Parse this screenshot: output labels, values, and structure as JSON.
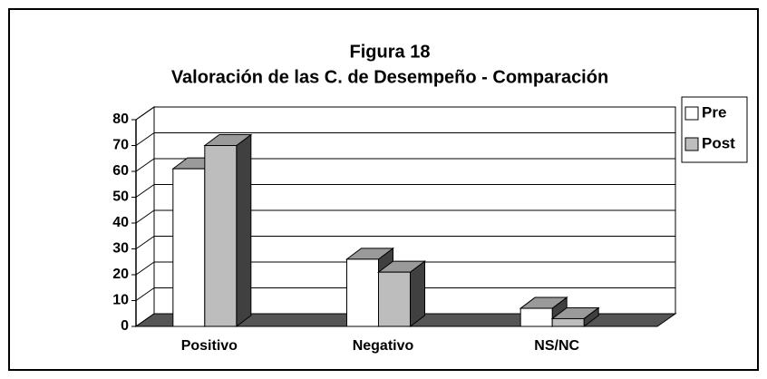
{
  "chart_data": {
    "type": "bar3d",
    "title": "Figura 18",
    "subtitle": "Valoración de las C. de Desempeño - Comparación",
    "categories": [
      "Positivo",
      "Negativo",
      "NS/NC"
    ],
    "series": [
      {
        "name": "Pre",
        "color": "#ffffff",
        "values": [
          61,
          26,
          7
        ]
      },
      {
        "name": "Post",
        "color": "#bdbdbd",
        "values": [
          70,
          21,
          3
        ]
      }
    ],
    "ylim": [
      0,
      80
    ],
    "yticks": [
      0,
      10,
      20,
      30,
      40,
      50,
      60,
      70,
      80
    ],
    "grid": true,
    "legend": "right"
  }
}
